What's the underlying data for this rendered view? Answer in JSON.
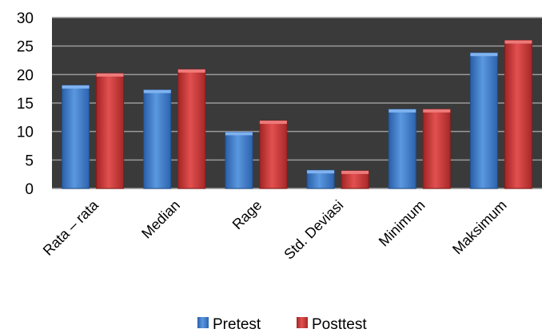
{
  "chart_data": {
    "type": "bar",
    "categories": [
      "Rata – rata",
      "Median",
      "Rage",
      "Std. Deviasi",
      "Minimum",
      "Maksimum"
    ],
    "series": [
      {
        "name": "Pretest",
        "values": [
          18.1,
          17.3,
          9.9,
          3.2,
          13.9,
          23.8
        ]
      },
      {
        "name": "Posttest",
        "values": [
          20.2,
          20.9,
          11.9,
          3.1,
          13.9,
          26.0
        ]
      }
    ],
    "yticks": [
      "0",
      "5",
      "10",
      "15",
      "20",
      "25",
      "30"
    ],
    "ylim": [
      0,
      30
    ],
    "grid": true,
    "legend": "bottom",
    "colors": {
      "pretest": "#3f7fcc",
      "posttest": "#cc3333",
      "plot_bg": "#3a3a3a",
      "grid": "#9a9a9a"
    }
  }
}
